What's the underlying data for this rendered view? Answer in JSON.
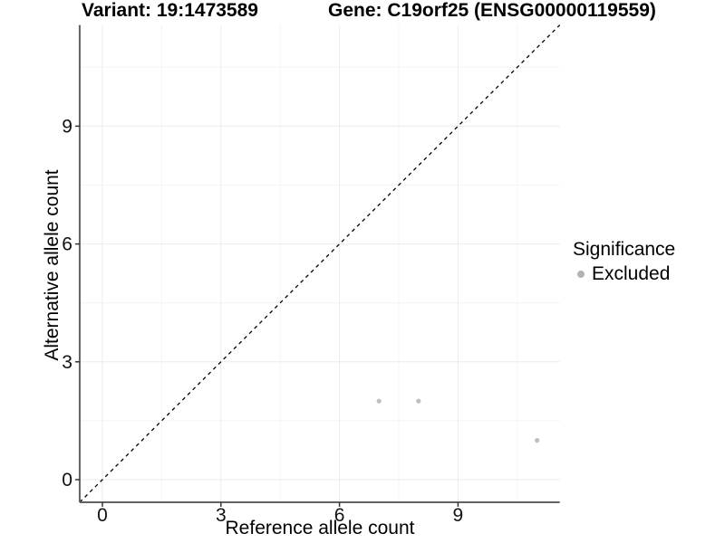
{
  "chart_data": {
    "type": "scatter",
    "titles": [
      "Variant: 19:1473589",
      "Gene: C19orf25 (ENSG00000119559)"
    ],
    "xlabel": "Reference allele count",
    "ylabel": "Alternative allele count",
    "xlim": [
      -0.575,
      11.575
    ],
    "ylim": [
      -0.575,
      11.575
    ],
    "x_ticks": [
      0,
      3,
      6,
      9
    ],
    "y_ticks": [
      0,
      3,
      6,
      9
    ],
    "x_minor_gridlines": [
      1.5,
      4.5,
      7.5,
      10.5
    ],
    "y_minor_gridlines": [
      1.5,
      4.5,
      7.5,
      10.5
    ],
    "grid": "major and minor gridlines on white panel",
    "reference_line": {
      "slope": 1,
      "intercept": 0,
      "style": "dashed",
      "color": "#000000"
    },
    "series": [
      {
        "name": "Excluded",
        "color": "#bebebe",
        "points": [
          {
            "x": 7,
            "y": 2
          },
          {
            "x": 8,
            "y": 2
          },
          {
            "x": 11,
            "y": 1
          }
        ]
      }
    ],
    "legend": {
      "title": "Significance",
      "position": "right",
      "items": [
        {
          "label": "Excluded",
          "color": "#b3b3b3"
        }
      ]
    },
    "colors": {
      "axis_line": "#616161",
      "tick_mark": "#333333",
      "grid_major": "#ebebeb",
      "grid_minor": "#f4f4f4",
      "tick_label": "#111111",
      "background": "#ffffff"
    }
  }
}
